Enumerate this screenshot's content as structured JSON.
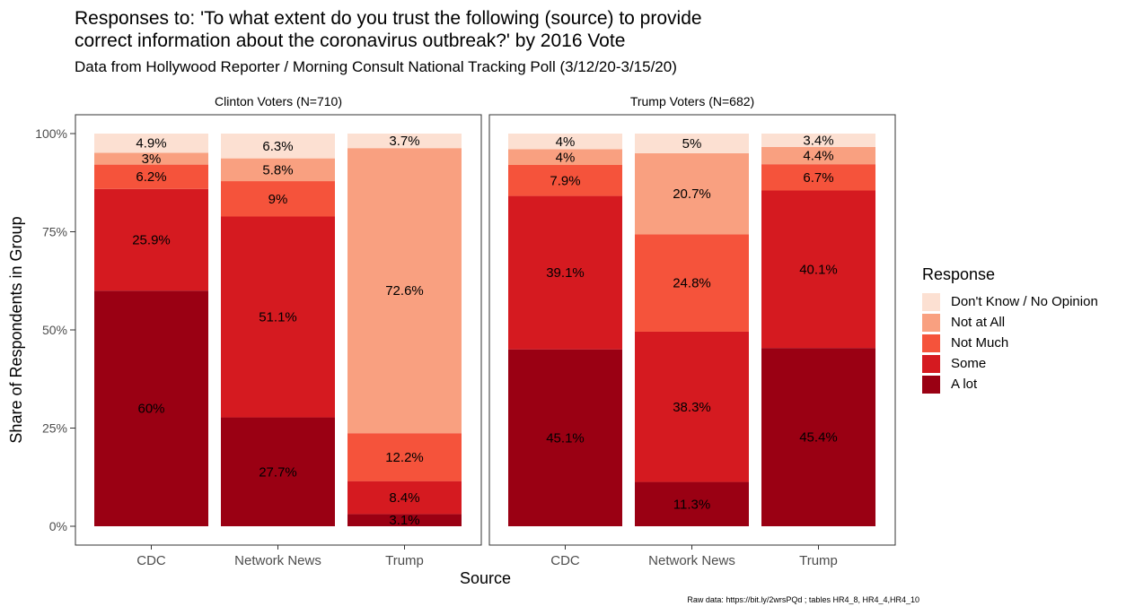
{
  "title": "Responses to: 'To what extent do you trust the following (source) to provide\ncorrect information about the coronavirus outbreak?' by 2016 Vote",
  "subtitle": "Data from Hollywood Reporter / Morning Consult National Tracking Poll (3/12/20-3/15/20)",
  "caption": "Raw data: https://bit.ly/2wrsPQd ; tables HR4_8, HR4_4,HR4_10",
  "legend": {
    "title": "Response",
    "items": [
      {
        "label": "Don't Know / No Opinion",
        "color": "#fce0d2"
      },
      {
        "label": "Not at All",
        "color": "#f9a080"
      },
      {
        "label": "Not Much",
        "color": "#f5533b"
      },
      {
        "label": "Some",
        "color": "#d51a20"
      },
      {
        "label": "A lot",
        "color": "#9a0013"
      }
    ]
  },
  "chart_data": {
    "type": "bar",
    "stacked": true,
    "xlabel": "Source",
    "ylabel": "Share of Respondents in Group",
    "ylim": [
      0,
      100
    ],
    "yticks": [
      "0%",
      "25%",
      "50%",
      "75%",
      "100%"
    ],
    "categories": [
      "CDC",
      "Network News",
      "Trump"
    ],
    "series_order": [
      "A lot",
      "Some",
      "Not Much",
      "Not at All",
      "Don't Know / No Opinion"
    ],
    "facets": [
      {
        "label": "Clinton Voters (N=710)",
        "bars": [
          {
            "category": "CDC",
            "values": [
              60,
              25.9,
              6.2,
              3,
              4.9
            ],
            "labels": [
              "60%",
              "25.9%",
              "6.2%",
              "3%",
              "4.9%"
            ]
          },
          {
            "category": "Network News",
            "values": [
              27.7,
              51.1,
              9,
              5.8,
              6.3
            ],
            "labels": [
              "27.7%",
              "51.1%",
              "9%",
              "5.8%",
              "6.3%"
            ]
          },
          {
            "category": "Trump",
            "values": [
              3.1,
              8.4,
              12.2,
              72.6,
              3.7
            ],
            "labels": [
              "3.1%",
              "8.4%",
              "12.2%",
              "72.6%",
              "3.7%"
            ]
          }
        ]
      },
      {
        "label": "Trump Voters (N=682)",
        "bars": [
          {
            "category": "CDC",
            "values": [
              45.1,
              39.1,
              7.9,
              4,
              4
            ],
            "labels": [
              "45.1%",
              "39.1%",
              "7.9%",
              "4%",
              "4%"
            ]
          },
          {
            "category": "Network News",
            "values": [
              11.3,
              38.3,
              24.8,
              20.7,
              5
            ],
            "labels": [
              "11.3%",
              "38.3%",
              "24.8%",
              "20.7%",
              "5%"
            ]
          },
          {
            "category": "Trump",
            "values": [
              45.4,
              40.1,
              6.7,
              4.4,
              3.4
            ],
            "labels": [
              "45.4%",
              "40.1%",
              "6.7%",
              "4.4%",
              "3.4%"
            ]
          }
        ]
      }
    ]
  }
}
